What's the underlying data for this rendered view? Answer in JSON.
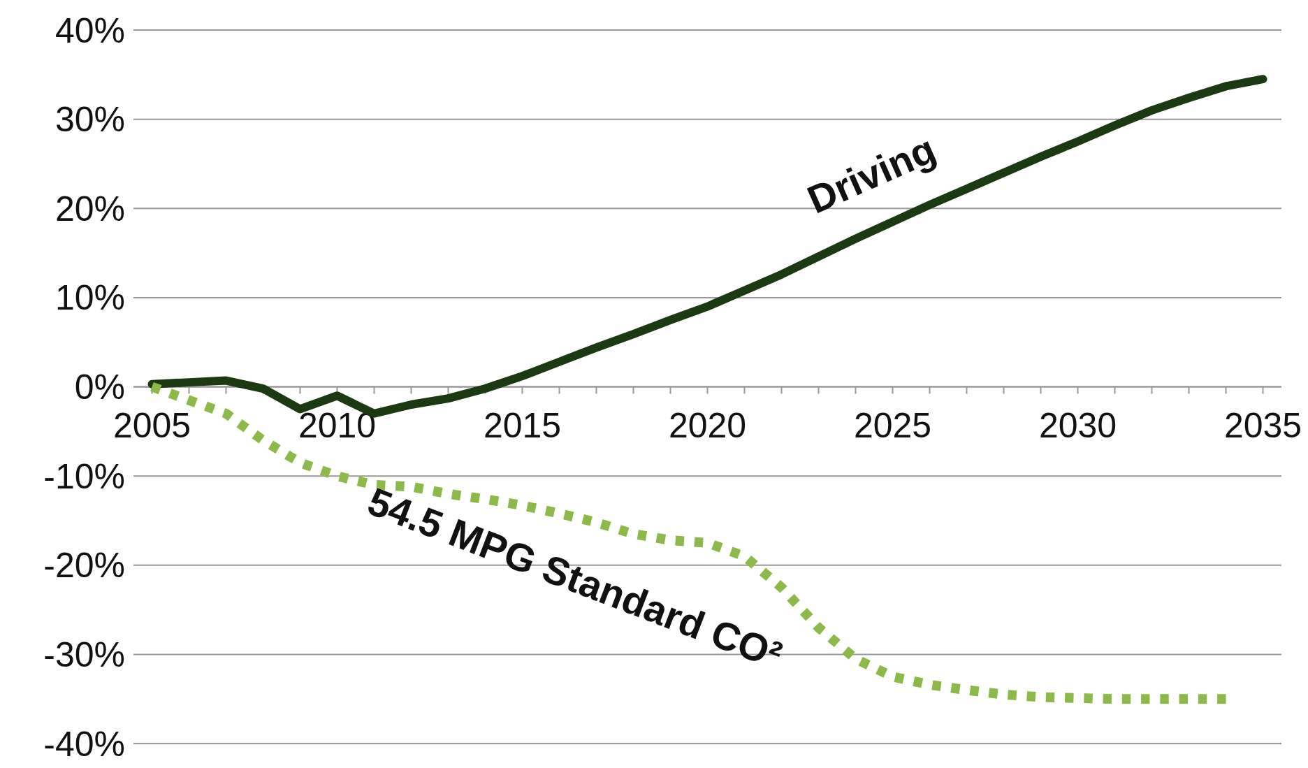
{
  "chart_data": {
    "type": "line",
    "x": [
      2005,
      2006,
      2007,
      2008,
      2009,
      2010,
      2011,
      2012,
      2013,
      2014,
      2015,
      2016,
      2017,
      2018,
      2019,
      2020,
      2021,
      2022,
      2023,
      2024,
      2025,
      2026,
      2027,
      2028,
      2029,
      2030,
      2031,
      2032,
      2033,
      2034,
      2035
    ],
    "series": [
      {
        "name": "Driving",
        "color": "#1c3a12",
        "line_style": "solid",
        "values": [
          0.3,
          0.5,
          0.7,
          -0.2,
          -2.5,
          -1,
          -3,
          -2,
          -1.3,
          -0.2,
          1.2,
          2.8,
          4.4,
          5.9,
          7.5,
          9,
          10.8,
          12.6,
          14.6,
          16.6,
          18.5,
          20.4,
          22.2,
          24,
          25.8,
          27.5,
          29.3,
          31,
          32.4,
          33.7,
          34.5
        ]
      },
      {
        "name": "54.5 MPG Standard CO²",
        "color": "#8db94a",
        "line_style": "dotted",
        "values": [
          0,
          -1.5,
          -3,
          -6,
          -8.5,
          -10,
          -11,
          -11.2,
          -12,
          -12.6,
          -13.3,
          -14.2,
          -15.2,
          -16.5,
          -17.2,
          -17.5,
          -19,
          -22.5,
          -27,
          -30.5,
          -32.5,
          -33.4,
          -34,
          -34.5,
          -34.8,
          -34.9,
          -35,
          -35,
          -35,
          -35,
          null
        ]
      }
    ],
    "xlim": [
      2004.5,
      2035.5
    ],
    "xticks": [
      2005,
      {
        "value": 2006,
        "label": null
      },
      {
        "value": 2007,
        "label": null
      },
      {
        "value": 2008,
        "label": null
      },
      {
        "value": 2009,
        "label": null
      },
      2010,
      {
        "value": 2011,
        "label": null
      },
      {
        "value": 2012,
        "label": null
      },
      {
        "value": 2013,
        "label": null
      },
      {
        "value": 2014,
        "label": null
      },
      2015,
      {
        "value": 2016,
        "label": null
      },
      {
        "value": 2017,
        "label": null
      },
      {
        "value": 2018,
        "label": null
      },
      {
        "value": 2019,
        "label": null
      },
      2020,
      {
        "value": 2021,
        "label": null
      },
      {
        "value": 2022,
        "label": null
      },
      {
        "value": 2023,
        "label": null
      },
      {
        "value": 2024,
        "label": null
      },
      2025,
      {
        "value": 2026,
        "label": null
      },
      {
        "value": 2027,
        "label": null
      },
      {
        "value": 2028,
        "label": null
      },
      {
        "value": 2029,
        "label": null
      },
      2030,
      {
        "value": 2031,
        "label": null
      },
      {
        "value": 2032,
        "label": null
      },
      {
        "value": 2033,
        "label": null
      },
      {
        "value": 2034,
        "label": null
      },
      2035
    ],
    "ylim": [
      -40,
      40
    ],
    "yticks": [
      {
        "value": 40,
        "label": "40%"
      },
      {
        "value": 30,
        "label": "30%"
      },
      {
        "value": 20,
        "label": "20%"
      },
      {
        "value": 10,
        "label": "10%"
      },
      {
        "value": 0,
        "label": "0%"
      },
      {
        "value": -10,
        "label": "-10%"
      },
      {
        "value": -20,
        "label": "-20%"
      },
      {
        "value": -30,
        "label": "-30%"
      },
      {
        "value": -40,
        "label": "-40%"
      }
    ],
    "grid": "y",
    "marker": "none"
  }
}
